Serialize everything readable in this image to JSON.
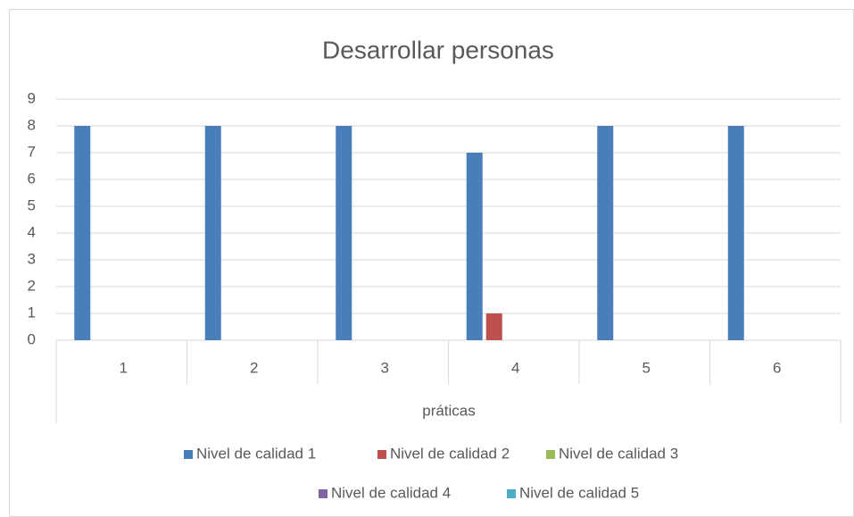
{
  "chart_data": {
    "type": "bar",
    "title": "Desarrollar personas",
    "x_label": "práticas",
    "categories": [
      "1",
      "2",
      "3",
      "4",
      "5",
      "6"
    ],
    "series": [
      {
        "name": "Nivel de calidad 1",
        "color": "#4a7ebb",
        "values": [
          8,
          8,
          8,
          7,
          8,
          8
        ]
      },
      {
        "name": "Nivel de calidad 2",
        "color": "#c0504d",
        "values": [
          0,
          0,
          0,
          1,
          0,
          0
        ]
      },
      {
        "name": "Nivel de calidad 3",
        "color": "#9bbb59",
        "values": [
          0,
          0,
          0,
          0,
          0,
          0
        ]
      },
      {
        "name": "Nivel de calidad 4",
        "color": "#8064a2",
        "values": [
          0,
          0,
          0,
          0,
          0,
          0
        ]
      },
      {
        "name": "Nivel de calidad 5",
        "color": "#4bacc6",
        "values": [
          0,
          0,
          0,
          0,
          0,
          0
        ]
      }
    ],
    "ylim": [
      0,
      9
    ],
    "yticks": [
      0,
      1,
      2,
      3,
      4,
      5,
      6,
      7,
      8,
      9
    ],
    "grid": true,
    "legend": "bottom"
  }
}
